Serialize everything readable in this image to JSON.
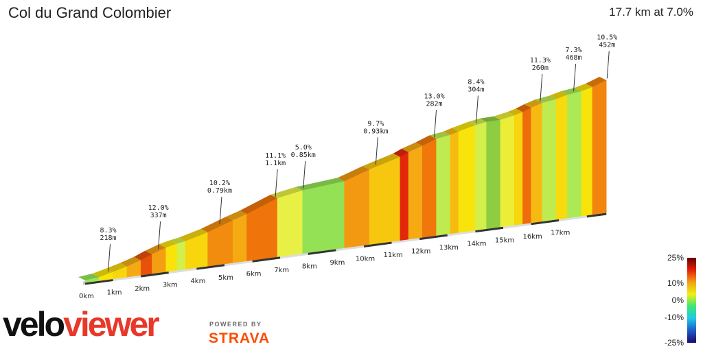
{
  "header": {
    "title": "Col du Grand Colombier",
    "summary": "17.7 km at 7.0%"
  },
  "chart_data": {
    "type": "area",
    "title": "Col du Grand Colombier",
    "x_ticks": [
      "0km",
      "1km",
      "2km",
      "3km",
      "4km",
      "5km",
      "6km",
      "7km",
      "8km",
      "9km",
      "10km",
      "11km",
      "12km",
      "13km",
      "14km",
      "15km",
      "16km",
      "17km"
    ],
    "segments": [
      {
        "start_km": 0.0,
        "end_km": 0.5,
        "gradient": 3.0
      },
      {
        "start_km": 0.5,
        "end_km": 1.0,
        "gradient": 7.0
      },
      {
        "start_km": 1.0,
        "end_km": 1.5,
        "gradient": 7.5
      },
      {
        "start_km": 1.5,
        "end_km": 2.0,
        "gradient": 9.0
      },
      {
        "start_km": 2.0,
        "end_km": 2.4,
        "gradient": 12.0
      },
      {
        "start_km": 2.4,
        "end_km": 2.9,
        "gradient": 9.5
      },
      {
        "start_km": 2.9,
        "end_km": 3.3,
        "gradient": 7.0
      },
      {
        "start_km": 3.3,
        "end_km": 3.6,
        "gradient": 4.5
      },
      {
        "start_km": 3.6,
        "end_km": 4.4,
        "gradient": 7.5
      },
      {
        "start_km": 4.4,
        "end_km": 5.3,
        "gradient": 10.2
      },
      {
        "start_km": 5.3,
        "end_km": 5.8,
        "gradient": 9.0
      },
      {
        "start_km": 5.8,
        "end_km": 6.9,
        "gradient": 11.1
      },
      {
        "start_km": 6.9,
        "end_km": 7.8,
        "gradient": 5.0
      },
      {
        "start_km": 7.8,
        "end_km": 9.3,
        "gradient": 2.5
      },
      {
        "start_km": 9.3,
        "end_km": 10.2,
        "gradient": 9.7
      },
      {
        "start_km": 10.2,
        "end_km": 11.3,
        "gradient": 8.0
      },
      {
        "start_km": 11.3,
        "end_km": 11.6,
        "gradient": 13.0
      },
      {
        "start_km": 11.6,
        "end_km": 12.1,
        "gradient": 9.0
      },
      {
        "start_km": 12.1,
        "end_km": 12.6,
        "gradient": 11.0
      },
      {
        "start_km": 12.6,
        "end_km": 13.1,
        "gradient": 4.0
      },
      {
        "start_km": 13.1,
        "end_km": 13.4,
        "gradient": 8.4
      },
      {
        "start_km": 13.4,
        "end_km": 14.0,
        "gradient": 7.0
      },
      {
        "start_km": 14.0,
        "end_km": 14.4,
        "gradient": 4.5
      },
      {
        "start_km": 14.4,
        "end_km": 14.9,
        "gradient": 0.5
      },
      {
        "start_km": 14.9,
        "end_km": 15.4,
        "gradient": 5.5
      },
      {
        "start_km": 15.4,
        "end_km": 15.7,
        "gradient": 7.5
      },
      {
        "start_km": 15.7,
        "end_km": 16.0,
        "gradient": 11.3
      },
      {
        "start_km": 16.0,
        "end_km": 16.4,
        "gradient": 8.5
      },
      {
        "start_km": 16.4,
        "end_km": 16.9,
        "gradient": 4.0
      },
      {
        "start_km": 16.9,
        "end_km": 17.3,
        "gradient": 7.3
      },
      {
        "start_km": 17.3,
        "end_km": 17.8,
        "gradient": 3.5
      },
      {
        "start_km": 17.8,
        "end_km": 18.2,
        "gradient": 7.0
      },
      {
        "start_km": 18.2,
        "end_km": 18.7,
        "gradient": 10.5
      }
    ],
    "annotations": [
      {
        "at_km": 0.9,
        "gradient": "8.3%",
        "length": "218m"
      },
      {
        "at_km": 2.7,
        "gradient": "12.0%",
        "length": "337m"
      },
      {
        "at_km": 4.9,
        "gradient": "10.2%",
        "length": "0.79km"
      },
      {
        "at_km": 6.9,
        "gradient": "11.1%",
        "length": "1.1km"
      },
      {
        "at_km": 7.9,
        "gradient": "5.0%",
        "length": "0.85km"
      },
      {
        "at_km": 10.5,
        "gradient": "9.7%",
        "length": "0.93km"
      },
      {
        "at_km": 12.6,
        "gradient": "13.0%",
        "length": "282m"
      },
      {
        "at_km": 14.1,
        "gradient": "8.4%",
        "length": "304m"
      },
      {
        "at_km": 16.4,
        "gradient": "11.3%",
        "length": "260m"
      },
      {
        "at_km": 17.6,
        "gradient": "7.3%",
        "length": "468m"
      },
      {
        "at_km": 18.8,
        "gradient": "10.5%",
        "length": "452m"
      }
    ],
    "legend": {
      "labels": [
        "25%",
        "10%",
        "0%",
        "-10%",
        "-25%"
      ],
      "values": [
        25,
        10,
        0,
        -10,
        -25
      ]
    }
  },
  "branding": {
    "logo_part1": "velo",
    "logo_part2": "viewer",
    "powered_by": "POWERED BY",
    "strava": "STRAVA"
  },
  "colors": {
    "label_text": "#222222",
    "ramp": [
      "#1a0a6e",
      "#1e5ac8",
      "#1ec8e6",
      "#3ce678",
      "#f0f014",
      "#f0a014",
      "#e61e0a",
      "#640000"
    ]
  }
}
